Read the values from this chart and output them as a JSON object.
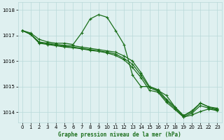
{
  "background_color": "#dff0f0",
  "grid_color": "#b8d8d8",
  "line_color": "#1a6e1a",
  "title": "Graphe pression niveau de la mer (hPa)",
  "xlim": [
    -0.5,
    23.5
  ],
  "ylim": [
    1013.6,
    1018.3
  ],
  "yticks": [
    1014,
    1015,
    1016,
    1017,
    1018
  ],
  "xticks": [
    0,
    1,
    2,
    3,
    4,
    5,
    6,
    7,
    8,
    9,
    10,
    11,
    12,
    13,
    14,
    15,
    16,
    17,
    18,
    19,
    20,
    21,
    22,
    23
  ],
  "series": [
    {
      "x": [
        0,
        1,
        2,
        3,
        4,
        5,
        6,
        7,
        8,
        9,
        10,
        11,
        12,
        13,
        14,
        15,
        16,
        17,
        18,
        19,
        20,
        21,
        22,
        23
      ],
      "y": [
        1017.2,
        1017.1,
        1016.85,
        1016.75,
        1016.7,
        1016.7,
        1016.65,
        1017.1,
        1017.65,
        1017.82,
        1017.72,
        1017.2,
        1016.65,
        1015.45,
        1015.0,
        1015.0,
        1014.85,
        1014.65,
        1014.2,
        1013.85,
        1014.05,
        1014.35,
        1014.2,
        1014.15
      ]
    },
    {
      "x": [
        0,
        1,
        2,
        3,
        4,
        5,
        6,
        7,
        8,
        9,
        10,
        11,
        12,
        13,
        14,
        15,
        16,
        17,
        18,
        19,
        20,
        21,
        22,
        23
      ],
      "y": [
        1017.2,
        1017.05,
        1016.75,
        1016.7,
        1016.65,
        1016.62,
        1016.6,
        1016.55,
        1016.5,
        1016.45,
        1016.4,
        1016.35,
        1016.2,
        1016.0,
        1015.55,
        1015.0,
        1014.88,
        1014.5,
        1014.2,
        1013.87,
        1014.0,
        1014.35,
        1014.2,
        1014.1
      ]
    },
    {
      "x": [
        0,
        1,
        2,
        3,
        4,
        5,
        6,
        7,
        8,
        9,
        10,
        11,
        12,
        13,
        14,
        15,
        16,
        17,
        18,
        19,
        20,
        21,
        22,
        23
      ],
      "y": [
        1017.2,
        1017.05,
        1016.72,
        1016.67,
        1016.62,
        1016.58,
        1016.55,
        1016.5,
        1016.45,
        1016.4,
        1016.35,
        1016.28,
        1016.1,
        1015.88,
        1015.45,
        1014.95,
        1014.82,
        1014.45,
        1014.15,
        1013.82,
        1013.95,
        1014.25,
        1014.15,
        1014.08
      ]
    },
    {
      "x": [
        0,
        1,
        2,
        3,
        4,
        5,
        6,
        7,
        8,
        9,
        10,
        11,
        12,
        13,
        14,
        15,
        16,
        17,
        18,
        19,
        20,
        21,
        22,
        23
      ],
      "y": [
        1017.2,
        1017.05,
        1016.7,
        1016.65,
        1016.6,
        1016.55,
        1016.52,
        1016.48,
        1016.42,
        1016.38,
        1016.32,
        1016.22,
        1016.05,
        1015.75,
        1015.35,
        1014.85,
        1014.78,
        1014.38,
        1014.1,
        1013.8,
        1013.88,
        1014.02,
        1014.12,
        1014.05
      ]
    }
  ],
  "marker": "+",
  "marker_size": 3.5,
  "line_width": 0.9
}
